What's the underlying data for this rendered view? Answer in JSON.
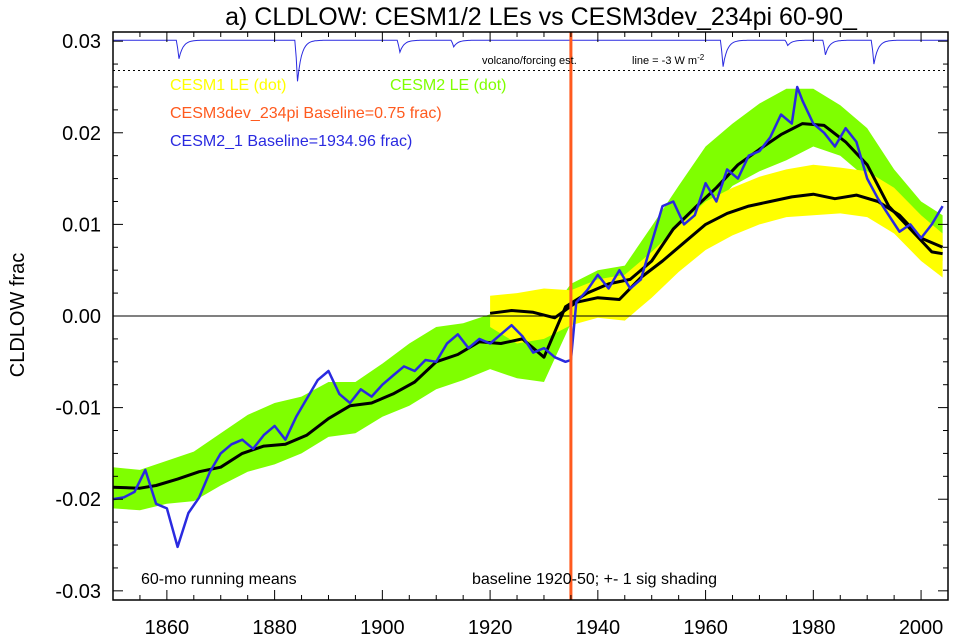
{
  "chart_data": {
    "type": "line",
    "title": "a) CLDLOW: CESM1/2 LEs vs CESM3dev_234pi 60-90_",
    "ylabel": "CLDLOW frac",
    "xlabel": "",
    "xlim": [
      1850,
      2005
    ],
    "ylim": [
      -0.031,
      0.031
    ],
    "x_ticks": [
      1860,
      1880,
      1900,
      1920,
      1940,
      1960,
      1980,
      2000
    ],
    "y_ticks": [
      -0.03,
      -0.02,
      -0.01,
      0.0,
      0.01,
      0.02,
      0.03
    ],
    "y_tick_labels": [
      "-0.03",
      "-0.02",
      "-0.01",
      "0.00",
      "0.01",
      "0.02",
      "0.03"
    ],
    "zero_line": true,
    "baseline_marker_year": 1935,
    "colors": {
      "cesm1_band": "#ffff00",
      "cesm2_band": "#7fff00",
      "mean_line": "#000000",
      "cesm2_1_line": "#2a2ae0",
      "baseline_marker": "#ff5a1e",
      "volcano_line": "#2a2ae0"
    },
    "legend": {
      "cesm1": "CESM1 LE (dot)",
      "cesm2": "CESM2 LE (dot)",
      "cesm3": "CESM3dev_234pi Baseline=0.75 frac)",
      "cesm2_1": "CESM2_1 Baseline=1934.96 frac)",
      "colors": {
        "cesm1": "#ffff00",
        "cesm2": "#7fff00",
        "cesm3": "#ff5a1e",
        "cesm2_1": "#2a2ae0"
      }
    },
    "notes": {
      "running": "60-mo running means",
      "baseline": "baseline 1920-50; +- 1 sig shading",
      "volcano": "volcano/forcing est.",
      "line_label": "line = -3 W m",
      "line_label_sup": "-2"
    },
    "volcano_ref_level": 0.0268,
    "volcano_dips": [
      {
        "year": 1862,
        "depth": 0.0028
      },
      {
        "year": 1884,
        "depth": 0.0062
      },
      {
        "year": 1903,
        "depth": 0.0018
      },
      {
        "year": 1913,
        "depth": 0.001
      },
      {
        "year": 1963,
        "depth": 0.004
      },
      {
        "year": 1975,
        "depth": 0.0008
      },
      {
        "year": 1982,
        "depth": 0.0022
      },
      {
        "year": 1991,
        "depth": 0.0036
      }
    ],
    "series": [
      {
        "name": "CESM2 LE (dot)",
        "kind": "band",
        "x": [
          1850,
          1855,
          1860,
          1865,
          1870,
          1875,
          1880,
          1885,
          1890,
          1895,
          1900,
          1905,
          1910,
          1915,
          1920,
          1925,
          1930,
          1935,
          1940,
          1945,
          1950,
          1955,
          1960,
          1965,
          1970,
          1975,
          1980,
          1985,
          1990,
          1995,
          2000,
          2004
        ],
        "lower": [
          -0.021,
          -0.0212,
          -0.0205,
          -0.0202,
          -0.0185,
          -0.017,
          -0.0162,
          -0.015,
          -0.0132,
          -0.0128,
          -0.011,
          -0.0098,
          -0.008,
          -0.007,
          -0.0058,
          -0.0068,
          -0.0072,
          -0.0008,
          0.001,
          0.0005,
          0.0035,
          0.0078,
          0.011,
          0.0142,
          0.0158,
          0.017,
          0.0185,
          0.0175,
          0.015,
          0.0105,
          0.007,
          0.006
        ],
        "upper": [
          -0.0165,
          -0.0168,
          -0.0158,
          -0.0148,
          -0.0128,
          -0.0108,
          -0.0095,
          -0.0088,
          -0.0072,
          -0.0072,
          -0.0052,
          -0.003,
          -0.0012,
          -0.0008,
          0.0002,
          0.0005,
          -0.0005,
          0.0035,
          0.005,
          0.0055,
          0.0098,
          0.0142,
          0.0185,
          0.021,
          0.0232,
          0.0248,
          0.0248,
          0.023,
          0.0205,
          0.016,
          0.0125,
          0.011
        ]
      },
      {
        "name": "CESM1 LE (dot)",
        "kind": "band",
        "x": [
          1920,
          1925,
          1930,
          1935,
          1940,
          1945,
          1950,
          1955,
          1960,
          1965,
          1970,
          1975,
          1980,
          1985,
          1990,
          1995,
          2000,
          2004
        ],
        "lower": [
          -0.0012,
          -0.003,
          -0.0025,
          -0.001,
          -0.0002,
          -0.0005,
          0.002,
          0.0048,
          0.0072,
          0.0088,
          0.01,
          0.0108,
          0.011,
          0.0112,
          0.0108,
          0.009,
          0.006,
          0.0042
        ],
        "upper": [
          0.0022,
          0.0025,
          0.003,
          0.0028,
          0.004,
          0.0045,
          0.007,
          0.0098,
          0.0125,
          0.014,
          0.0152,
          0.016,
          0.0165,
          0.0162,
          0.0158,
          0.014,
          0.011,
          0.009
        ]
      },
      {
        "name": "CESM2 LE mean",
        "kind": "line",
        "x": [
          1850,
          1855,
          1858,
          1862,
          1866,
          1870,
          1874,
          1878,
          1882,
          1886,
          1890,
          1894,
          1898,
          1902,
          1906,
          1910,
          1914,
          1918,
          1922,
          1926,
          1930,
          1934,
          1938,
          1942,
          1946,
          1950,
          1954,
          1958,
          1962,
          1966,
          1970,
          1974,
          1978,
          1982,
          1986,
          1990,
          1994,
          1998,
          2002,
          2004
        ],
        "y": [
          -0.0187,
          -0.0188,
          -0.0185,
          -0.0178,
          -0.017,
          -0.0165,
          -0.015,
          -0.0142,
          -0.014,
          -0.013,
          -0.0112,
          -0.0098,
          -0.0095,
          -0.0085,
          -0.0072,
          -0.005,
          -0.0042,
          -0.0028,
          -0.003,
          -0.0025,
          -0.0045,
          0.001,
          0.0025,
          0.0035,
          0.004,
          0.006,
          0.0095,
          0.0118,
          0.014,
          0.0165,
          0.0182,
          0.0198,
          0.021,
          0.0208,
          0.019,
          0.0165,
          0.012,
          0.0095,
          0.007,
          0.0068
        ]
      },
      {
        "name": "CESM1 LE mean",
        "kind": "line",
        "x": [
          1920,
          1924,
          1928,
          1932,
          1936,
          1940,
          1944,
          1948,
          1952,
          1956,
          1960,
          1964,
          1968,
          1972,
          1976,
          1980,
          1984,
          1988,
          1992,
          1996,
          2000,
          2004
        ],
        "y": [
          0.0003,
          0.0006,
          0.0004,
          -0.0002,
          0.0015,
          0.002,
          0.0018,
          0.0042,
          0.006,
          0.008,
          0.01,
          0.0112,
          0.012,
          0.0125,
          0.013,
          0.0133,
          0.0128,
          0.0132,
          0.0125,
          0.011,
          0.0085,
          0.0075
        ]
      },
      {
        "name": "CESM2_1 Baseline=1934.96 frac)",
        "kind": "line",
        "x": [
          1850,
          1852,
          1854,
          1856,
          1858,
          1860,
          1862,
          1864,
          1866,
          1868,
          1870,
          1872,
          1874,
          1876,
          1878,
          1880,
          1882,
          1884,
          1886,
          1888,
          1890,
          1892,
          1894,
          1896,
          1898,
          1900,
          1902,
          1904,
          1906,
          1908,
          1910,
          1912,
          1914,
          1916,
          1918,
          1920,
          1922,
          1924,
          1926,
          1928,
          1930,
          1932,
          1934,
          1935,
          1936,
          1938,
          1940,
          1942,
          1944,
          1946,
          1948,
          1950,
          1952,
          1954,
          1956,
          1958,
          1960,
          1962,
          1964,
          1966,
          1968,
          1970,
          1972,
          1974,
          1976,
          1977,
          1978,
          1980,
          1982,
          1984,
          1986,
          1988,
          1990,
          1992,
          1994,
          1996,
          1998,
          2000,
          2002,
          2004
        ],
        "y": [
          -0.02,
          -0.0198,
          -0.0192,
          -0.0168,
          -0.0205,
          -0.021,
          -0.0252,
          -0.0215,
          -0.0198,
          -0.017,
          -0.015,
          -0.014,
          -0.0135,
          -0.0145,
          -0.013,
          -0.012,
          -0.0135,
          -0.011,
          -0.009,
          -0.007,
          -0.006,
          -0.0085,
          -0.0095,
          -0.008,
          -0.0088,
          -0.0075,
          -0.0065,
          -0.0055,
          -0.006,
          -0.0048,
          -0.005,
          -0.003,
          -0.002,
          -0.0035,
          -0.0025,
          -0.003,
          -0.002,
          -0.001,
          -0.0022,
          -0.004,
          -0.0035,
          -0.0045,
          -0.005,
          -0.0048,
          0.0015,
          0.0028,
          0.0045,
          0.003,
          0.005,
          0.003,
          0.004,
          0.008,
          0.012,
          0.0125,
          0.01,
          0.011,
          0.0145,
          0.0125,
          0.016,
          0.015,
          0.0175,
          0.018,
          0.0195,
          0.022,
          0.021,
          0.025,
          0.0235,
          0.021,
          0.02,
          0.0185,
          0.0205,
          0.019,
          0.015,
          0.0128,
          0.011,
          0.0092,
          0.01,
          0.0085,
          0.01,
          0.012
        ]
      }
    ]
  }
}
